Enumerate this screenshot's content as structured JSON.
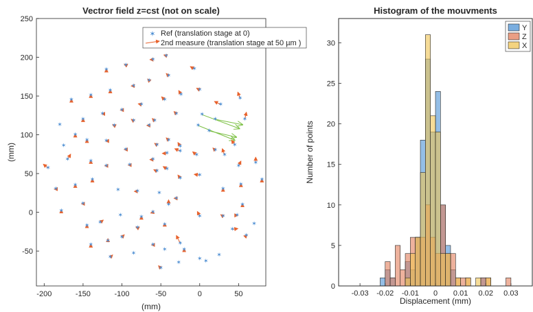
{
  "chart_data": [
    {
      "type": "scatter",
      "title": "Vectror field z=cst (not on scale)",
      "xlabel": "(mm)",
      "ylabel": "(mm)",
      "xlim": [
        -210,
        85
      ],
      "ylim": [
        -95,
        250
      ],
      "xticks": [
        -200,
        -150,
        -100,
        -50,
        0,
        50
      ],
      "yticks": [
        -50,
        0,
        50,
        100,
        150,
        200,
        250
      ],
      "legend_position": "top-right",
      "legend": [
        "Ref (translation stage at 0)",
        "2nd measure (translation stage at 50 µm )"
      ],
      "colors": {
        "ref": "#4f8fd3",
        "arrow": "#e8622c",
        "long_arrow": "#7bc043"
      },
      "points": [
        {
          "x": -43,
          "y": 202,
          "dx": -3,
          "dy": 1
        },
        {
          "x": -7,
          "y": 185,
          "dx": -5,
          "dy": 3
        },
        {
          "x": -60,
          "y": 197,
          "dx": -4,
          "dy": 0
        },
        {
          "x": -95,
          "y": 190,
          "dx": -2,
          "dy": 1
        },
        {
          "x": -120,
          "y": 184,
          "dx": 0,
          "dy": 1
        },
        {
          "x": -40,
          "y": 176,
          "dx": -3,
          "dy": 3
        },
        {
          "x": -65,
          "y": 170,
          "dx": -2,
          "dy": 2
        },
        {
          "x": -85,
          "y": 163,
          "dx": -3,
          "dy": 0
        },
        {
          "x": -115,
          "y": 157,
          "dx": 0,
          "dy": 1
        },
        {
          "x": -140,
          "y": 151,
          "dx": 0,
          "dy": 1
        },
        {
          "x": -165,
          "y": 145,
          "dx": 0,
          "dy": 1
        },
        {
          "x": -24,
          "y": 152,
          "dx": -3,
          "dy": 5
        },
        {
          "x": 0,
          "y": 158,
          "dx": -4,
          "dy": 2
        },
        {
          "x": -45,
          "y": 145,
          "dx": -4,
          "dy": 4
        },
        {
          "x": -75,
          "y": 139,
          "dx": -4,
          "dy": 1
        },
        {
          "x": -100,
          "y": 132,
          "dx": -2,
          "dy": 0
        },
        {
          "x": -125,
          "y": 127,
          "dx": -1,
          "dy": 0
        },
        {
          "x": -150,
          "y": 120,
          "dx": 0,
          "dy": 1
        },
        {
          "x": -180,
          "y": 113,
          "dx": 0,
          "dy": 0
        },
        {
          "x": -30,
          "y": 127,
          "dx": -3,
          "dy": 3
        },
        {
          "x": 27,
          "y": 139,
          "dx": -8,
          "dy": 4
        },
        {
          "x": 52,
          "y": 147,
          "dx": -3,
          "dy": 8
        },
        {
          "x": 58,
          "y": 120,
          "dx": 2,
          "dy": 9
        },
        {
          "x": 3,
          "y": 126,
          "dx": 48,
          "dy": -18,
          "long": true
        },
        {
          "x": 20,
          "y": 120,
          "dx": 35,
          "dy": -7,
          "long": true
        },
        {
          "x": 12,
          "y": 105,
          "dx": 35,
          "dy": -8,
          "long": true
        },
        {
          "x": -2,
          "y": 112,
          "dx": 47,
          "dy": -19,
          "long": true
        },
        {
          "x": -58,
          "y": 118,
          "dx": -3,
          "dy": 3
        },
        {
          "x": -85,
          "y": 118,
          "dx": -3,
          "dy": 2
        },
        {
          "x": -65,
          "y": 112,
          "dx": -3,
          "dy": 0
        },
        {
          "x": -110,
          "y": 112,
          "dx": -2,
          "dy": 1
        },
        {
          "x": -160,
          "y": 100,
          "dx": 0,
          "dy": 1
        },
        {
          "x": -145,
          "y": 93,
          "dx": 0,
          "dy": 1
        },
        {
          "x": -120,
          "y": 92,
          "dx": -1,
          "dy": 0
        },
        {
          "x": -175,
          "y": 86,
          "dx": 0,
          "dy": 0
        },
        {
          "x": -40,
          "y": 93,
          "dx": -3,
          "dy": 3
        },
        {
          "x": -55,
          "y": 87,
          "dx": -3,
          "dy": 2
        },
        {
          "x": -95,
          "y": 81,
          "dx": -2,
          "dy": 0
        },
        {
          "x": -25,
          "y": 85,
          "dx": -3,
          "dy": 5
        },
        {
          "x": 20,
          "y": 80,
          "dx": -3,
          "dy": 3
        },
        {
          "x": 32,
          "y": 74,
          "dx": -3,
          "dy": 8
        },
        {
          "x": 45,
          "y": 87,
          "dx": -4,
          "dy": 6
        },
        {
          "x": -42,
          "y": 76,
          "dx": -6,
          "dy": 0
        },
        {
          "x": -25,
          "y": 79,
          "dx": -7,
          "dy": 3
        },
        {
          "x": -4,
          "y": 74,
          "dx": -5,
          "dy": 4
        },
        {
          "x": -60,
          "y": 68,
          "dx": -4,
          "dy": 0
        },
        {
          "x": -140,
          "y": 66,
          "dx": 0,
          "dy": 1
        },
        {
          "x": -170,
          "y": 68,
          "dx": 4,
          "dy": 7
        },
        {
          "x": -195,
          "y": 57,
          "dx": -6,
          "dy": 5
        },
        {
          "x": -120,
          "y": 60,
          "dx": -2,
          "dy": 0
        },
        {
          "x": -90,
          "y": 61,
          "dx": -2,
          "dy": 0
        },
        {
          "x": -42,
          "y": 56,
          "dx": -5,
          "dy": 3
        },
        {
          "x": -55,
          "y": 53,
          "dx": -4,
          "dy": 2
        },
        {
          "x": -25,
          "y": 44,
          "dx": -3,
          "dy": 4
        },
        {
          "x": 0,
          "y": 48,
          "dx": -7,
          "dy": 1
        },
        {
          "x": 50,
          "y": 60,
          "dx": 3,
          "dy": 6
        },
        {
          "x": 72,
          "y": 64,
          "dx": 0,
          "dy": 7
        },
        {
          "x": 80,
          "y": 42,
          "dx": 0,
          "dy": 1
        },
        {
          "x": 53,
          "y": 36,
          "dx": 0,
          "dy": 1
        },
        {
          "x": 30,
          "y": 30,
          "dx": 0,
          "dy": 1
        },
        {
          "x": -138,
          "y": 42,
          "dx": 0,
          "dy": 1
        },
        {
          "x": -160,
          "y": 35,
          "dx": 0,
          "dy": 1
        },
        {
          "x": -185,
          "y": 30,
          "dx": -2,
          "dy": 0
        },
        {
          "x": -105,
          "y": 29,
          "dx": 0,
          "dy": 0
        },
        {
          "x": -80,
          "y": 27,
          "dx": -4,
          "dy": 0
        },
        {
          "x": -52,
          "y": 25,
          "dx": 0,
          "dy": 0
        },
        {
          "x": -30,
          "y": 18,
          "dx": -3,
          "dy": 0
        },
        {
          "x": -40,
          "y": 10,
          "dx": 0,
          "dy": 6
        },
        {
          "x": 55,
          "y": 10,
          "dx": 0,
          "dy": 1
        },
        {
          "x": 0,
          "y": -5,
          "dx": -3,
          "dy": 6
        },
        {
          "x": -150,
          "y": 11,
          "dx": -2,
          "dy": 0
        },
        {
          "x": -178,
          "y": 2,
          "dx": 0,
          "dy": 1
        },
        {
          "x": -60,
          "y": 0,
          "dx": -3,
          "dy": -1
        },
        {
          "x": -75,
          "y": -6,
          "dx": 0,
          "dy": 1
        },
        {
          "x": -102,
          "y": -4,
          "dx": 0,
          "dy": 0
        },
        {
          "x": 30,
          "y": -5,
          "dx": -3,
          "dy": 2
        },
        {
          "x": 48,
          "y": -4,
          "dx": 1,
          "dy": 0
        },
        {
          "x": 70,
          "y": -15,
          "dx": 0,
          "dy": 0
        },
        {
          "x": -128,
          "y": -13,
          "dx": 4,
          "dy": 3
        },
        {
          "x": -145,
          "y": -17,
          "dx": 0,
          "dy": 1
        },
        {
          "x": -80,
          "y": -20,
          "dx": -2,
          "dy": 1
        },
        {
          "x": -45,
          "y": -16,
          "dx": 0,
          "dy": 2
        },
        {
          "x": -100,
          "y": -32,
          "dx": 3,
          "dy": 3
        },
        {
          "x": -25,
          "y": -40,
          "dx": -5,
          "dy": 10
        },
        {
          "x": 42,
          "y": -22,
          "dx": 7,
          "dy": 1
        },
        {
          "x": 60,
          "y": -30,
          "dx": 1,
          "dy": 1
        },
        {
          "x": -118,
          "y": -37,
          "dx": 0,
          "dy": 3
        },
        {
          "x": -140,
          "y": -42,
          "dx": 0,
          "dy": 1
        },
        {
          "x": -60,
          "y": -42,
          "dx": -2,
          "dy": 0
        },
        {
          "x": -45,
          "y": -48,
          "dx": 0,
          "dy": 0
        },
        {
          "x": -20,
          "y": -48,
          "dx": 0,
          "dy": 1
        },
        {
          "x": -85,
          "y": -53,
          "dx": 0,
          "dy": 0
        },
        {
          "x": -115,
          "y": -58,
          "dx": 3,
          "dy": 3
        },
        {
          "x": 25,
          "y": -55,
          "dx": 0,
          "dy": 0
        },
        {
          "x": 0,
          "y": -60,
          "dx": 0,
          "dy": 0
        },
        {
          "x": -27,
          "y": -65,
          "dx": 0,
          "dy": 0
        },
        {
          "x": -50,
          "y": -72,
          "dx": -3,
          "dy": 3
        },
        {
          "x": 8,
          "y": -63,
          "dx": 0,
          "dy": 0
        }
      ]
    },
    {
      "type": "bar",
      "title": "Histogram of the mouvments",
      "xlabel": "Displacement (mm)",
      "ylabel": "Number of points",
      "xlim": [
        -0.0385,
        0.0385
      ],
      "ylim": [
        0,
        33
      ],
      "xticks": [
        -0.03,
        -0.02,
        -0.01,
        0,
        0.01,
        0.02,
        0.03
      ],
      "xtick_labels": [
        "-0.03",
        "-0.02",
        "-0.01",
        "0",
        "0.01",
        "0.02",
        "0.03"
      ],
      "yticks": [
        0,
        5,
        10,
        15,
        20,
        25,
        30
      ],
      "bin_width": 0.002,
      "legend_position": "top-right",
      "series": [
        {
          "name": "Y",
          "color": "#4d93d6",
          "bins": [
            [
              -0.021,
              1
            ],
            [
              -0.019,
              2
            ],
            [
              -0.017,
              1
            ],
            [
              -0.011,
              3
            ],
            [
              -0.009,
              2
            ],
            [
              -0.007,
              6
            ],
            [
              -0.005,
              18
            ],
            [
              -0.003,
              28
            ],
            [
              -0.001,
              19
            ],
            [
              0.001,
              24
            ],
            [
              0.003,
              10
            ],
            [
              0.005,
              5
            ],
            [
              0.007,
              2
            ],
            [
              0.019,
              1
            ]
          ]
        },
        {
          "name": "Z",
          "color": "#e37e5b",
          "bins": [
            [
              -0.019,
              3
            ],
            [
              -0.017,
              1
            ],
            [
              -0.015,
              5
            ],
            [
              -0.013,
              2
            ],
            [
              -0.011,
              4
            ],
            [
              -0.009,
              6
            ],
            [
              -0.007,
              6
            ],
            [
              -0.005,
              6
            ],
            [
              -0.003,
              10
            ],
            [
              -0.001,
              6
            ],
            [
              0.001,
              4
            ],
            [
              0.003,
              10
            ],
            [
              0.005,
              4
            ],
            [
              0.007,
              4
            ],
            [
              0.009,
              1
            ],
            [
              0.011,
              1
            ],
            [
              0.013,
              1
            ],
            [
              0.019,
              1
            ],
            [
              0.021,
              1
            ],
            [
              0.029,
              1
            ]
          ]
        },
        {
          "name": "X",
          "color": "#f0c454",
          "bins": [
            [
              -0.011,
              1
            ],
            [
              -0.009,
              4
            ],
            [
              -0.007,
              6
            ],
            [
              -0.005,
              14
            ],
            [
              -0.003,
              31
            ],
            [
              -0.001,
              21
            ],
            [
              0.001,
              19
            ],
            [
              0.003,
              4
            ],
            [
              0.005,
              4
            ],
            [
              0.009,
              1
            ],
            [
              0.013,
              1
            ],
            [
              0.017,
              1
            ],
            [
              0.021,
              1
            ]
          ]
        }
      ]
    }
  ]
}
